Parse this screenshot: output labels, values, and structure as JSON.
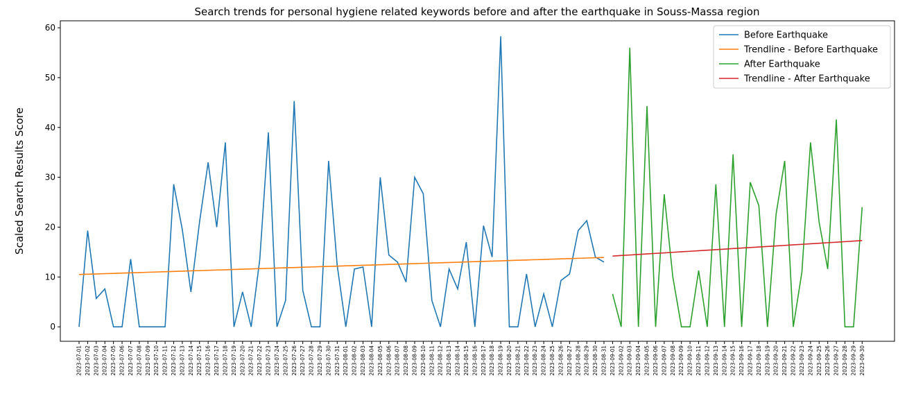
{
  "chart_data": {
    "type": "line",
    "title": "Search trends for personal hygiene related keywords before and after the earthquake in Souss-Massa region",
    "y_label": "Scaled Search Results Score",
    "categories": [
      "2023-07-01",
      "2023-07-02",
      "2023-07-03",
      "2023-07-04",
      "2023-07-05",
      "2023-07-06",
      "2023-07-07",
      "2023-07-08",
      "2023-07-09",
      "2023-07-10",
      "2023-07-11",
      "2023-07-12",
      "2023-07-13",
      "2023-07-14",
      "2023-07-15",
      "2023-07-16",
      "2023-07-17",
      "2023-07-18",
      "2023-07-19",
      "2023-07-20",
      "2023-07-21",
      "2023-07-22",
      "2023-07-23",
      "2023-07-24",
      "2023-07-25",
      "2023-07-26",
      "2023-07-27",
      "2023-07-28",
      "2023-07-29",
      "2023-07-30",
      "2023-07-31",
      "2023-08-01",
      "2023-08-02",
      "2023-08-03",
      "2023-08-04",
      "2023-08-05",
      "2023-08-06",
      "2023-08-07",
      "2023-08-08",
      "2023-08-09",
      "2023-08-10",
      "2023-08-11",
      "2023-08-12",
      "2023-08-13",
      "2023-08-14",
      "2023-08-15",
      "2023-08-16",
      "2023-08-17",
      "2023-08-18",
      "2023-08-19",
      "2023-08-20",
      "2023-08-21",
      "2023-08-22",
      "2023-08-23",
      "2023-08-24",
      "2023-08-25",
      "2023-08-26",
      "2023-08-27",
      "2023-08-28",
      "2023-08-29",
      "2023-08-30",
      "2023-08-31",
      "2023-09-01",
      "2023-09-02",
      "2023-09-03",
      "2023-09-04",
      "2023-09-05",
      "2023-09-06",
      "2023-09-07",
      "2023-09-08",
      "2023-09-09",
      "2023-09-10",
      "2023-09-11",
      "2023-09-12",
      "2023-09-13",
      "2023-09-14",
      "2023-09-15",
      "2023-09-16",
      "2023-09-17",
      "2023-09-18",
      "2023-09-19",
      "2023-09-20",
      "2023-09-21",
      "2023-09-22",
      "2023-09-23",
      "2023-09-24",
      "2023-09-25",
      "2023-09-26",
      "2023-09-27",
      "2023-09-28",
      "2023-09-29",
      "2023-09-30"
    ],
    "series": [
      {
        "name": "Before Earthquake",
        "color": "#1f77b4",
        "values": [
          0,
          19.3,
          5.7,
          7.6,
          0,
          0,
          13.6,
          0,
          0,
          0,
          0,
          28.6,
          19.5,
          7,
          21,
          33,
          20,
          37,
          0,
          7,
          0,
          13.5,
          39,
          0,
          5.3,
          45.3,
          7.3,
          0,
          0,
          33.3,
          12.3,
          0,
          11.6,
          12,
          0,
          30,
          14.4,
          13,
          9,
          30,
          26.7,
          5.3,
          0,
          11.6,
          7.6,
          17,
          0,
          20.3,
          14,
          58.3,
          0,
          0,
          10.6,
          0,
          6.6,
          0,
          9.3,
          10.6,
          19.3,
          21.3,
          14,
          13,
          null,
          null,
          null,
          null,
          null,
          null,
          null,
          null,
          null,
          null,
          null,
          null,
          null,
          null,
          null,
          null,
          null,
          null,
          null,
          null,
          null,
          null,
          null,
          null,
          null,
          null,
          null,
          null,
          null,
          null
        ]
      },
      {
        "name": "Trendline - Before Earthquake",
        "color": "#ff7f0e",
        "values": [
          10.5,
          10.56,
          10.61,
          10.67,
          10.72,
          10.78,
          10.84,
          10.89,
          10.95,
          11.0,
          11.06,
          11.12,
          11.17,
          11.23,
          11.28,
          11.34,
          11.4,
          11.45,
          11.51,
          11.56,
          11.62,
          11.68,
          11.73,
          11.79,
          11.84,
          11.9,
          11.96,
          12.01,
          12.07,
          12.12,
          12.18,
          12.24,
          12.29,
          12.35,
          12.4,
          12.46,
          12.52,
          12.57,
          12.63,
          12.68,
          12.74,
          12.8,
          12.85,
          12.91,
          12.96,
          13.02,
          13.08,
          13.13,
          13.19,
          13.24,
          13.3,
          13.36,
          13.41,
          13.47,
          13.52,
          13.58,
          13.64,
          13.69,
          13.75,
          13.8,
          13.86,
          13.92,
          null,
          null,
          null,
          null,
          null,
          null,
          null,
          null,
          null,
          null,
          null,
          null,
          null,
          null,
          null,
          null,
          null,
          null,
          null,
          null,
          null,
          null,
          null,
          null,
          null,
          null,
          null,
          null,
          null,
          null
        ]
      },
      {
        "name": "After Earthquake",
        "color": "#2ca02c",
        "values": [
          null,
          null,
          null,
          null,
          null,
          null,
          null,
          null,
          null,
          null,
          null,
          null,
          null,
          null,
          null,
          null,
          null,
          null,
          null,
          null,
          null,
          null,
          null,
          null,
          null,
          null,
          null,
          null,
          null,
          null,
          null,
          null,
          null,
          null,
          null,
          null,
          null,
          null,
          null,
          null,
          null,
          null,
          null,
          null,
          null,
          null,
          null,
          null,
          null,
          null,
          null,
          null,
          null,
          null,
          null,
          null,
          null,
          null,
          null,
          null,
          null,
          null,
          6.6,
          0,
          56,
          0,
          44.3,
          0,
          26.6,
          10,
          0,
          0,
          11.3,
          0,
          28.6,
          0,
          34.6,
          0,
          29,
          24.3,
          0,
          22.6,
          33.3,
          0,
          11,
          37,
          21,
          11.6,
          41.6,
          0,
          0,
          24
        ]
      },
      {
        "name": "Trendline - After Earthquake",
        "color": "#d62728",
        "values": [
          null,
          null,
          null,
          null,
          null,
          null,
          null,
          null,
          null,
          null,
          null,
          null,
          null,
          null,
          null,
          null,
          null,
          null,
          null,
          null,
          null,
          null,
          null,
          null,
          null,
          null,
          null,
          null,
          null,
          null,
          null,
          null,
          null,
          null,
          null,
          null,
          null,
          null,
          null,
          null,
          null,
          null,
          null,
          null,
          null,
          null,
          null,
          null,
          null,
          null,
          null,
          null,
          null,
          null,
          null,
          null,
          null,
          null,
          null,
          null,
          null,
          null,
          14.2,
          14.31,
          14.41,
          14.52,
          14.63,
          14.74,
          14.84,
          14.95,
          15.06,
          15.16,
          15.27,
          15.38,
          15.48,
          15.59,
          15.7,
          15.81,
          15.91,
          16.02,
          16.13,
          16.23,
          16.34,
          16.45,
          16.55,
          16.66,
          16.77,
          16.88,
          16.98,
          17.09,
          17.2,
          17.3
        ]
      }
    ],
    "ylim": [
      -2.9,
      61.4
    ],
    "yticks": [
      0,
      10,
      20,
      30,
      40,
      50,
      60
    ],
    "legend": "upper right"
  }
}
